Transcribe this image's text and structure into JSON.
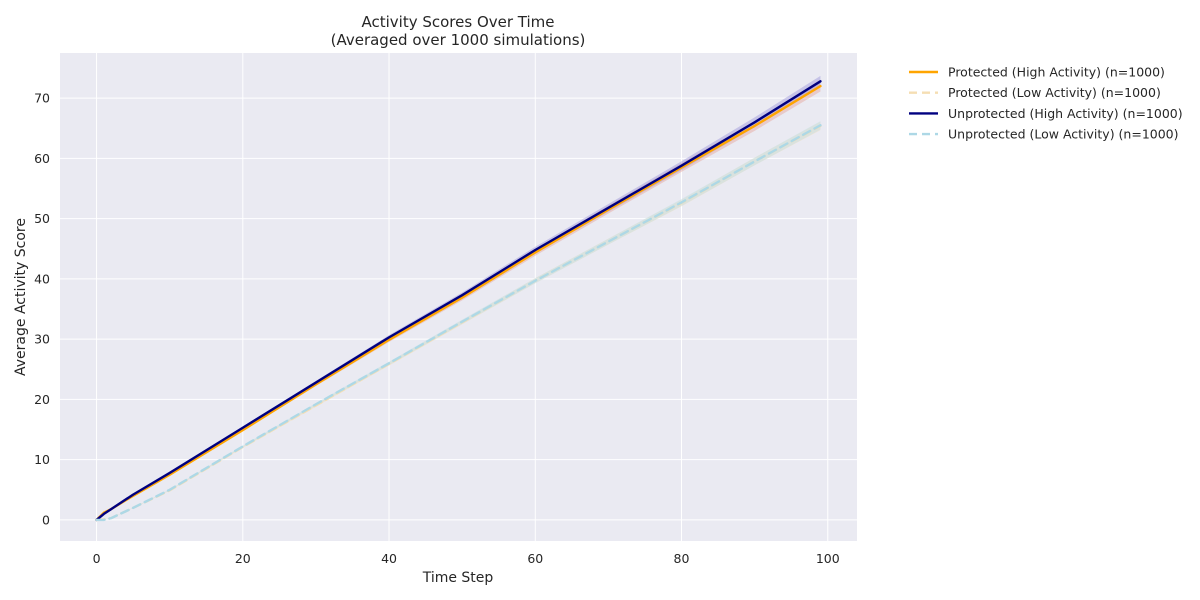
{
  "chart_data": {
    "type": "line",
    "title": [
      "Activity Scores Over Time",
      "(Averaged over 1000 simulations)"
    ],
    "xlabel": "Time Step",
    "ylabel": "Average Activity Score",
    "xlim": [
      -5,
      104
    ],
    "ylim": [
      -3.5,
      77.5
    ],
    "xticks": [
      0,
      20,
      40,
      60,
      80,
      100
    ],
    "yticks": [
      0,
      10,
      20,
      30,
      40,
      50,
      60,
      70
    ],
    "grid": true,
    "legend_position": "outside-right",
    "plot_background": "#EAEAF2",
    "series": [
      {
        "name": "Protected (High Activity) (n=1000)",
        "color": "#FFA500",
        "dash": "solid",
        "band_color": "#E6A59A",
        "x": [
          0,
          1,
          2,
          5,
          10,
          20,
          30,
          40,
          50,
          60,
          70,
          80,
          90,
          99
        ],
        "y": [
          0,
          1.2,
          1.8,
          4.0,
          7.5,
          14.9,
          22.5,
          29.9,
          36.9,
          44.4,
          51.5,
          58.5,
          65.4,
          72.0
        ],
        "band": 0.9
      },
      {
        "name": "Protected (Low Activity) (n=1000)",
        "color": "#F5DEB3",
        "dash": "dashed",
        "band_color": "#F5DEB3",
        "x": [
          0,
          1,
          2,
          5,
          10,
          20,
          30,
          40,
          50,
          60,
          70,
          80,
          90,
          99
        ],
        "y": [
          0,
          0.1,
          0.3,
          2.0,
          4.9,
          12.1,
          19.0,
          25.9,
          32.8,
          39.7,
          46.2,
          52.6,
          59.5,
          65.4
        ],
        "band": 0.7
      },
      {
        "name": "Unprotected (High Activity) (n=1000)",
        "color": "#000080",
        "dash": "solid",
        "band_color": "#9B95D9",
        "x": [
          0,
          1,
          2,
          3,
          5,
          10,
          20,
          30,
          40,
          50,
          60,
          70,
          80,
          90,
          99
        ],
        "y": [
          0,
          1.0,
          1.8,
          2.6,
          4.2,
          7.8,
          15.3,
          22.8,
          30.3,
          37.3,
          44.8,
          51.8,
          58.8,
          66.0,
          72.8
        ],
        "band": 0.9
      },
      {
        "name": "Unprotected (Low Activity) (n=1000)",
        "color": "#ADD8E6",
        "dash": "dashed",
        "band_color": "#BFE0EA",
        "x": [
          0,
          1,
          2,
          5,
          10,
          20,
          30,
          40,
          50,
          60,
          70,
          80,
          90,
          99
        ],
        "y": [
          0,
          0,
          0.3,
          2.0,
          5.0,
          12.2,
          19.2,
          26.0,
          32.9,
          39.7,
          46.2,
          52.7,
          59.5,
          65.5
        ],
        "band": 0.7
      }
    ]
  }
}
